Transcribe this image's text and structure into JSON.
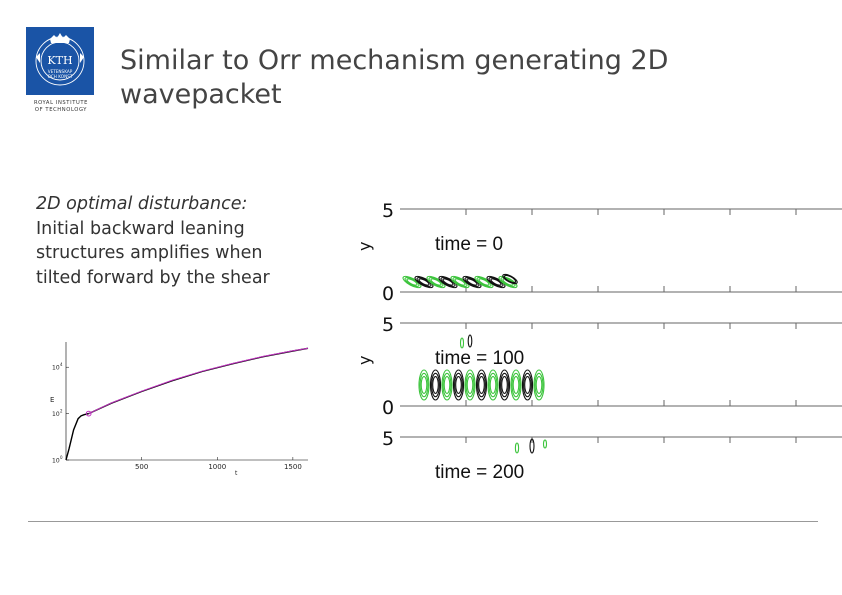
{
  "slide": {
    "title": "Similar to Orr mechanism generating 2D wavepacket"
  },
  "logo": {
    "wordmark": "KTH",
    "motto_top": "VETENSKAP",
    "motto_bottom": "OCH KONST",
    "caption_line1": "ROYAL INSTITUTE",
    "caption_line2": "OF TECHNOLOGY",
    "color": "#1a54a6"
  },
  "body": {
    "heading": "2D optimal disturbance:",
    "lines": [
      "Initial backward leaning",
      "structures amplifies when",
      "tilted forward by the shear"
    ]
  },
  "energy_plot": {
    "xlabel": "t",
    "ylabel": "E",
    "xticks": [
      "500",
      "1000",
      "1500"
    ],
    "yticks": [
      "10",
      "10",
      "10"
    ],
    "ytick_exponents": [
      "4",
      "2",
      "0"
    ]
  },
  "contour_plot": {
    "ylabel": "y",
    "panels": [
      {
        "label": "time = 0",
        "ytop": "5",
        "ybottom": "0"
      },
      {
        "label": "time = 100",
        "ytop": "5",
        "ybottom": "0"
      },
      {
        "label": "time = 200",
        "ytop": "5",
        "ybottom": ""
      }
    ],
    "colors": {
      "green": "#3cc43c",
      "black": "#111111",
      "curve_black": "#000000",
      "curve_magenta": "#c030c0"
    }
  },
  "chart_data": {
    "type": "line",
    "title": "",
    "xlabel": "t",
    "ylabel": "E",
    "xlim": [
      0,
      1600
    ],
    "ylim": [
      1,
      100000
    ],
    "yscale": "log",
    "series": [
      {
        "x": [
          0,
          20,
          50,
          80,
          100,
          120,
          150,
          300,
          500,
          700,
          900,
          1100,
          1300,
          1500,
          1600
        ],
        "y": [
          1,
          3,
          20,
          60,
          80,
          90,
          100,
          280,
          900,
          2600,
          6500,
          14000,
          28000,
          50000,
          65000
        ]
      },
      {
        "x": [
          150,
          300,
          500,
          700,
          900,
          1100,
          1300,
          1500,
          1600
        ],
        "y": [
          100,
          290,
          920,
          2700,
          6700,
          14500,
          29000,
          51000,
          66000
        ]
      }
    ],
    "markers": [
      {
        "x": 150,
        "y": 100
      }
    ]
  }
}
